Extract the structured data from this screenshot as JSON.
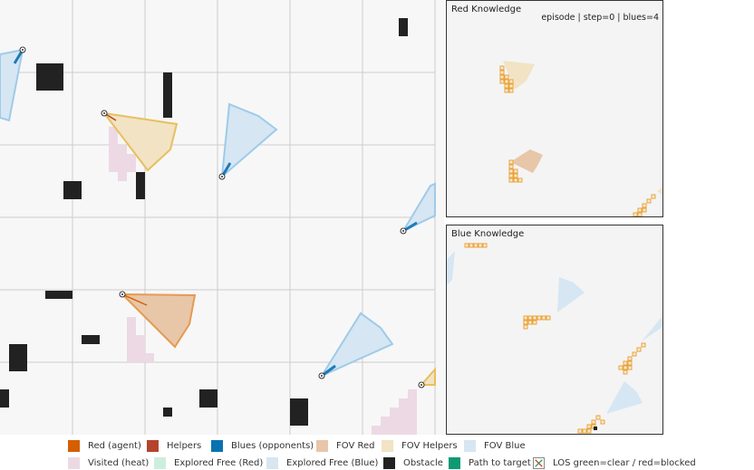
{
  "panels": {
    "red_title": "Red Knowledge",
    "blue_title": "Blue Knowledge",
    "status": "episode | step=0 | blues=4"
  },
  "legend": {
    "row1": [
      {
        "label": "Red (agent)",
        "color": "#d55e00",
        "icon": "swatch"
      },
      {
        "label": "Helpers",
        "color": "#b5442c",
        "icon": "swatch"
      },
      {
        "label": "Blues (opponents)",
        "color": "#0a72b0",
        "icon": "swatch"
      },
      {
        "label": "FOV Red",
        "color": "#e8c6a8",
        "icon": "swatch"
      },
      {
        "label": "FOV Helpers",
        "color": "#f1e3c4",
        "icon": "swatch"
      },
      {
        "label": "FOV Blue",
        "color": "#d6e6f2",
        "icon": "swatch"
      }
    ],
    "row2": [
      {
        "label": "Visited (heat)",
        "color": "#ecd9e4",
        "icon": "swatch"
      },
      {
        "label": "Explored Free (Red)",
        "color": "#cdeedd",
        "icon": "swatch"
      },
      {
        "label": "Explored Free (Blue)",
        "color": "#d8e6f2",
        "icon": "swatch"
      },
      {
        "label": "Obstacle",
        "color": "#222222",
        "icon": "swatch"
      },
      {
        "label": "Path to target",
        "color": "#0e9a73",
        "icon": "swatch"
      },
      {
        "label": "LOS green=clear / red=blocked",
        "color": "#cc3333",
        "icon": "x-cross-icon"
      }
    ]
  },
  "colors": {
    "grid": "#cccccc",
    "obstacle": "#222222",
    "fov_red": "#e8c6a8",
    "fov_red_edge": "#e59a52",
    "fov_helper": "#f1e3c4",
    "fov_helper_edge": "#e8bf5e",
    "fov_blue": "#d6e6f2",
    "fov_blue_edge": "#9ecbe9",
    "blue_agent": "#1e7ab8",
    "red_agent": "#d55e00",
    "visited": "#ecd9e4",
    "explored_cell": "#e8a33c"
  }
}
